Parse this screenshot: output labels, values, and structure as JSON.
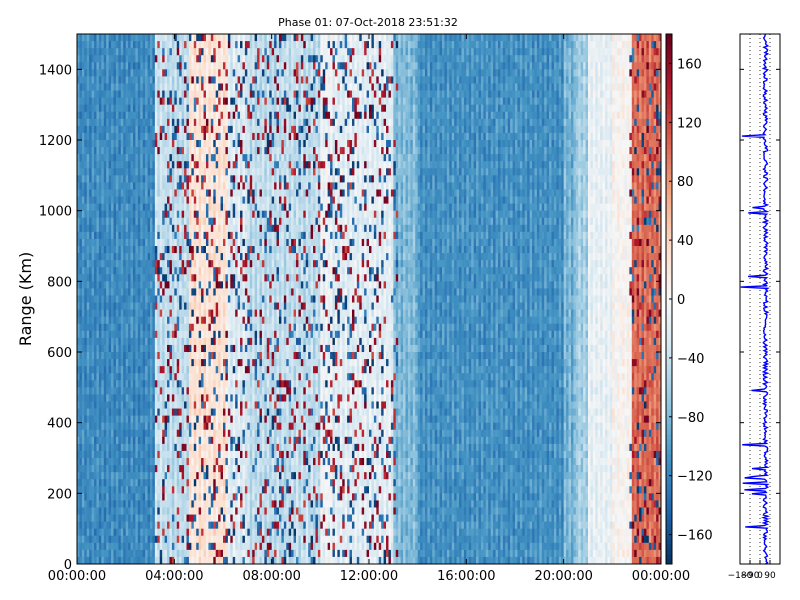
{
  "chart_data": {
    "type": "heatmap",
    "title": "Phase 01: 07-Oct-2018 23:51:32",
    "xlabel": "",
    "ylabel": "Range (Km)",
    "x_ticks": [
      "00:00:00",
      "04:00:00",
      "08:00:00",
      "12:00:00",
      "16:00:00",
      "20:00:00",
      "00:00:00"
    ],
    "y_ticks": [
      0,
      200,
      400,
      600,
      800,
      1000,
      1200,
      1400
    ],
    "ylim": [
      0,
      1500
    ],
    "xlim_hours": [
      0,
      24
    ],
    "colorbar": {
      "colormap": "RdBu_r",
      "range": [
        -180,
        180
      ],
      "ticks": [
        -160,
        -120,
        -80,
        -40,
        0,
        40,
        80,
        120,
        160
      ]
    },
    "column_profile_hours": [
      {
        "start": 0.0,
        "end": 3.2,
        "value": -115
      },
      {
        "start": 3.2,
        "end": 3.6,
        "value": -40
      },
      {
        "start": 3.6,
        "end": 4.6,
        "value": -45
      },
      {
        "start": 4.6,
        "end": 6.2,
        "value": 25
      },
      {
        "start": 6.2,
        "end": 7.0,
        "value": -25
      },
      {
        "start": 7.0,
        "end": 10.0,
        "value": -45
      },
      {
        "start": 10.0,
        "end": 10.5,
        "value": -10
      },
      {
        "start": 10.5,
        "end": 13.0,
        "value": -20
      },
      {
        "start": 13.0,
        "end": 14.0,
        "value": -80
      },
      {
        "start": 14.0,
        "end": 20.0,
        "value": -110
      },
      {
        "start": 20.0,
        "end": 20.5,
        "value": -85
      },
      {
        "start": 20.5,
        "end": 21.0,
        "value": -60
      },
      {
        "start": 21.0,
        "end": 22.0,
        "value": -15
      },
      {
        "start": 22.0,
        "end": 22.8,
        "value": 5
      },
      {
        "start": 22.8,
        "end": 24.0,
        "value": 100
      }
    ],
    "side_panel": {
      "type": "line",
      "color": "#0000ff",
      "x_ticks": [
        -180,
        -90,
        0,
        90
      ],
      "x_tick_labels": [
        "−180",
        "−90",
        "0",
        "90"
      ],
      "xlim": [
        -180,
        180
      ],
      "ylim": [
        0,
        1500
      ]
    }
  },
  "labels": {
    "title": "Phase 01: 07-Oct-2018 23:51:32",
    "ylabel": "Range (Km)",
    "x_ticks": [
      "00:00:00",
      "04:00:00",
      "08:00:00",
      "12:00:00",
      "16:00:00",
      "20:00:00",
      "00:00:00"
    ],
    "y_ticks": [
      "0",
      "200",
      "400",
      "600",
      "800",
      "1000",
      "1200",
      "1400"
    ],
    "colorbar_ticks": [
      "−160",
      "−120",
      "−80",
      "−40",
      "0",
      "40",
      "80",
      "120",
      "160"
    ],
    "side_ticks": [
      "−180",
      "−90",
      "0",
      "90"
    ]
  }
}
